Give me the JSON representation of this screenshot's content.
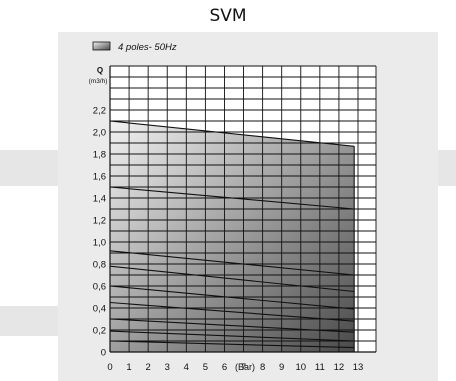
{
  "title": "SVM",
  "chart_data": {
    "type": "area",
    "title": "SVM",
    "legend": {
      "label": "4 poles- 50Hz",
      "placement": "top-left"
    },
    "y_unit_label_q": "Q",
    "y_unit_label": "(m3/h)",
    "x_unit_label": "(Bar)",
    "x_ticks": [
      "0",
      "1",
      "2",
      "3",
      "4",
      "5",
      "6",
      "7",
      "8",
      "9",
      "10",
      "11",
      "12",
      "13"
    ],
    "y_ticks": [
      "0",
      "0,2",
      "0,4",
      "0,6",
      "0,8",
      "1,0",
      "1,2",
      "1,4",
      "1,6",
      "1,8",
      "2,0",
      "2,2"
    ],
    "xlim": [
      0,
      13
    ],
    "ylim": [
      0,
      2.2
    ],
    "grid": true,
    "fill_color_top": "#f2f2f2",
    "fill_color_bottom": "#4a4a4a",
    "series": [
      {
        "x": [
          0,
          12.8
        ],
        "y": [
          0.1,
          0.04
        ]
      },
      {
        "x": [
          0,
          12.8
        ],
        "y": [
          0.19,
          0.1
        ]
      },
      {
        "x": [
          0,
          12.8
        ],
        "y": [
          0.3,
          0.18
        ]
      },
      {
        "x": [
          0,
          12.8
        ],
        "y": [
          0.45,
          0.28
        ]
      },
      {
        "x": [
          0,
          12.8
        ],
        "y": [
          0.6,
          0.39
        ]
      },
      {
        "x": [
          0,
          12.8
        ],
        "y": [
          0.78,
          0.55
        ]
      },
      {
        "x": [
          0,
          12.8
        ],
        "y": [
          0.92,
          0.7
        ]
      },
      {
        "x": [
          0,
          12.8
        ],
        "y": [
          1.5,
          1.3
        ]
      },
      {
        "x": [
          0,
          12.8
        ],
        "y": [
          2.1,
          1.87
        ]
      }
    ]
  }
}
